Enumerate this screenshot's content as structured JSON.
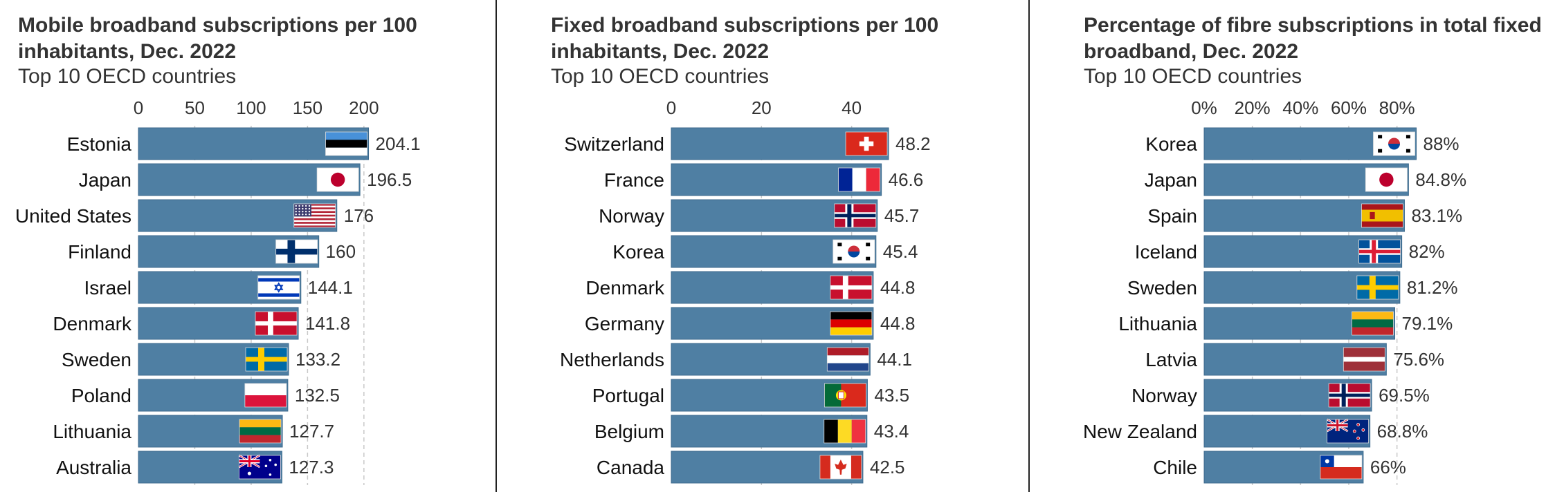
{
  "colors": {
    "bar": "#4f7fa3",
    "bar_edge": "#3c6a8d",
    "grid": "#c9c9c9",
    "text": "#333333"
  },
  "chart_data": [
    {
      "type": "bar",
      "orientation": "horizontal",
      "title": "Mobile broadband subscriptions per 100 inhabitants, Dec. 2022",
      "subtitle": "Top 10 OECD countries",
      "categories": [
        "Estonia",
        "Japan",
        "United States",
        "Finland",
        "Israel",
        "Denmark",
        "Sweden",
        "Poland",
        "Lithuania",
        "Australia"
      ],
      "values": [
        204.1,
        196.5,
        176,
        160,
        144.1,
        141.8,
        133.2,
        132.5,
        127.7,
        127.3
      ],
      "value_labels": [
        "204.1",
        "196.5",
        "176",
        "160",
        "144.1",
        "141.8",
        "133.2",
        "132.5",
        "127.7",
        "127.3"
      ],
      "flags": [
        "estonia-flag-icon",
        "japan-flag-icon",
        "united-states-flag-icon",
        "finland-flag-icon",
        "israel-flag-icon",
        "denmark-flag-icon",
        "sweden-flag-icon",
        "poland-flag-icon",
        "lithuania-flag-icon",
        "australia-flag-icon"
      ],
      "xlim": [
        0,
        205
      ],
      "xticks": [
        0,
        50,
        100,
        150,
        200
      ],
      "xtick_labels": [
        "0",
        "50",
        "100",
        "150",
        "200"
      ],
      "grid": true,
      "axis_position": "top"
    },
    {
      "type": "bar",
      "orientation": "horizontal",
      "title": "Fixed broadband subscriptions per 100 inhabitants, Dec. 2022",
      "subtitle": "Top 10 OECD countries",
      "categories": [
        "Switzerland",
        "France",
        "Norway",
        "Korea",
        "Denmark",
        "Germany",
        "Netherlands",
        "Portugal",
        "Belgium",
        "Canada"
      ],
      "values": [
        48.2,
        46.6,
        45.7,
        45.4,
        44.8,
        44.8,
        44.1,
        43.5,
        43.4,
        42.5
      ],
      "value_labels": [
        "48.2",
        "46.6",
        "45.7",
        "45.4",
        "44.8",
        "44.8",
        "44.1",
        "43.5",
        "43.4",
        "42.5"
      ],
      "flags": [
        "switzerland-flag-icon",
        "france-flag-icon",
        "norway-flag-icon",
        "korea-flag-icon",
        "denmark-flag-icon",
        "germany-flag-icon",
        "netherlands-flag-icon",
        "portugal-flag-icon",
        "belgium-flag-icon",
        "canada-flag-icon"
      ],
      "xlim": [
        0,
        48.5
      ],
      "xticks": [
        0,
        20,
        40
      ],
      "xtick_labels": [
        "0",
        "20",
        "40"
      ],
      "grid": true,
      "axis_position": "top"
    },
    {
      "type": "bar",
      "orientation": "horizontal",
      "title": "Percentage of fibre subscriptions in total fixed broadband, Dec. 2022",
      "subtitle": "Top 10 OECD countries",
      "categories": [
        "Korea",
        "Japan",
        "Spain",
        "Iceland",
        "Sweden",
        "Lithuania",
        "Latvia",
        "Norway",
        "New Zealand",
        "Chile"
      ],
      "values": [
        88,
        84.8,
        83.1,
        82,
        81.2,
        79.1,
        75.6,
        69.5,
        68.8,
        66
      ],
      "value_labels": [
        "88%",
        "84.8%",
        "83.1%",
        "82%",
        "81.2%",
        "79.1%",
        "75.6%",
        "69.5%",
        "68.8%",
        "66%"
      ],
      "flags": [
        "korea-flag-icon",
        "japan-flag-icon",
        "spain-flag-icon",
        "iceland-flag-icon",
        "sweden-flag-icon",
        "lithuania-flag-icon",
        "latvia-flag-icon",
        "norway-flag-icon",
        "new-zealand-flag-icon",
        "chile-flag-icon"
      ],
      "xlim": [
        0,
        89
      ],
      "xticks": [
        0,
        20,
        40,
        60,
        80
      ],
      "xtick_labels": [
        "0%",
        "20%",
        "40%",
        "60%",
        "80%"
      ],
      "grid": true,
      "axis_position": "top"
    }
  ]
}
